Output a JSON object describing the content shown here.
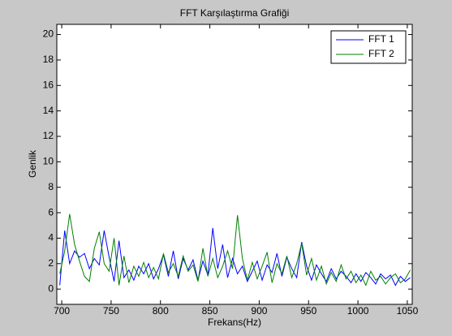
{
  "chart_data": {
    "type": "line",
    "title": "FFT Karşılaştırma Grafiği",
    "x_label": "Frekans(Hz)",
    "y_label": "Genlik",
    "x": [
      698,
      703,
      708,
      713,
      718,
      723,
      728,
      733,
      738,
      743,
      748,
      753,
      758,
      763,
      768,
      773,
      778,
      783,
      788,
      793,
      798,
      803,
      808,
      813,
      818,
      823,
      828,
      833,
      838,
      843,
      848,
      853,
      858,
      863,
      868,
      873,
      878,
      883,
      888,
      893,
      898,
      903,
      908,
      913,
      918,
      923,
      928,
      933,
      938,
      943,
      948,
      953,
      958,
      963,
      968,
      973,
      978,
      983,
      988,
      993,
      998,
      1003,
      1008,
      1013,
      1018,
      1023,
      1028,
      1033,
      1038,
      1043,
      1048,
      1053
    ],
    "series": [
      {
        "name": "FFT 1",
        "color": "#0000ff",
        "values": [
          0.3,
          4.6,
          2.0,
          3.0,
          2.5,
          2.8,
          1.6,
          2.4,
          1.9,
          4.6,
          2.5,
          0.6,
          3.8,
          0.9,
          1.5,
          0.7,
          1.8,
          1.2,
          2.0,
          0.8,
          1.6,
          2.7,
          1.0,
          3.0,
          0.8,
          2.4,
          1.5,
          2.3,
          0.7,
          2.2,
          1.1,
          4.8,
          1.6,
          3.5,
          0.9,
          2.4,
          1.2,
          1.8,
          0.6,
          1.4,
          2.2,
          0.7,
          1.9,
          1.3,
          2.8,
          1.0,
          2.5,
          1.6,
          0.9,
          3.7,
          1.8,
          0.7,
          1.9,
          1.2,
          0.6,
          1.6,
          0.8,
          1.4,
          1.0,
          0.5,
          1.2,
          0.6,
          1.3,
          0.9,
          0.4,
          1.2,
          0.8,
          1.1,
          0.3,
          1.0,
          0.6,
          0.9
        ]
      },
      {
        "name": "FFT 2",
        "color": "#008000",
        "values": [
          1.2,
          3.0,
          5.9,
          3.5,
          2.2,
          1.0,
          0.6,
          3.2,
          4.5,
          2.0,
          1.4,
          4.0,
          0.3,
          2.6,
          0.5,
          1.8,
          1.0,
          2.1,
          0.9,
          1.7,
          0.8,
          2.8,
          1.3,
          2.0,
          1.0,
          2.6,
          1.4,
          1.9,
          0.6,
          3.2,
          1.0,
          2.4,
          0.9,
          1.8,
          3.0,
          1.6,
          5.8,
          2.4,
          0.7,
          2.1,
          0.8,
          1.8,
          2.9,
          0.5,
          2.0,
          1.2,
          2.6,
          0.9,
          2.0,
          3.6,
          1.1,
          2.4,
          0.7,
          1.8,
          0.4,
          1.3,
          0.6,
          1.9,
          0.8,
          1.4,
          0.5,
          1.1,
          0.3,
          1.4,
          0.7,
          1.0,
          0.4,
          0.9,
          1.2,
          0.5,
          0.8,
          1.5
        ]
      }
    ],
    "xlim": [
      695,
      1055
    ],
    "xticks": [
      700,
      750,
      800,
      850,
      900,
      950,
      1000,
      1050
    ],
    "ylim": [
      -1.2,
      20.8
    ],
    "yticks": [
      0,
      2,
      4,
      6,
      8,
      10,
      12,
      14,
      16,
      18,
      20
    ],
    "legend": "top-right",
    "grid": false
  }
}
